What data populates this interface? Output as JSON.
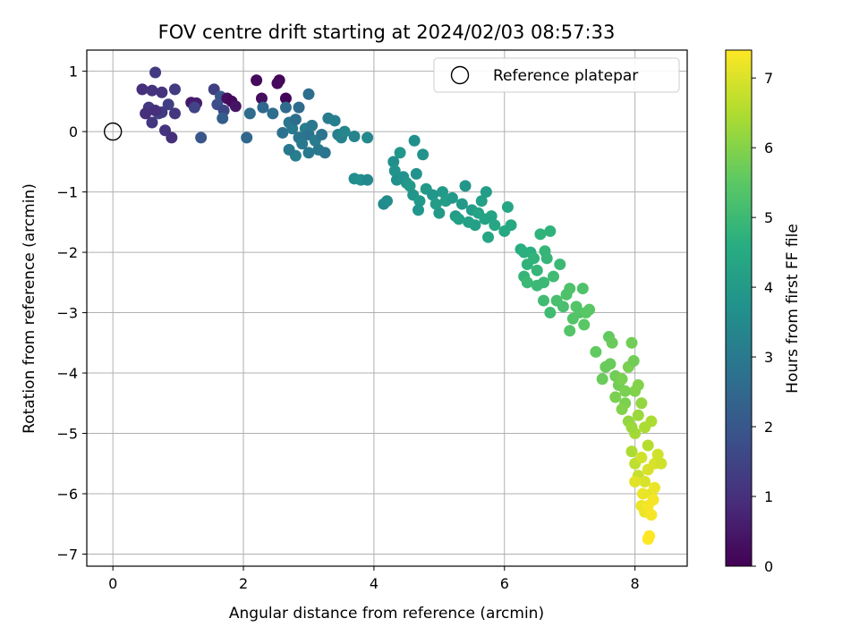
{
  "chart_data": {
    "type": "scatter",
    "title": "FOV centre drift starting at 2024/02/03 08:57:33",
    "xlabel": "Angular distance from reference (arcmin)",
    "ylabel": "Rotation from reference (arcmin)",
    "xlim": [
      -0.4,
      8.8
    ],
    "ylim": [
      -7.2,
      1.35
    ],
    "xticks": [
      0,
      2,
      4,
      6,
      8
    ],
    "yticks": [
      1,
      0,
      -1,
      -2,
      -3,
      -4,
      -5,
      -6,
      -7
    ],
    "grid": true,
    "legend": {
      "placement": "top-right",
      "entries": [
        "Reference platepar"
      ]
    },
    "reference_point": {
      "name": "Reference platepar",
      "x": 0,
      "y": 0,
      "marker": "hollow-circle"
    },
    "colorbar": {
      "label": "Hours from first FF file",
      "colormap": "viridis",
      "range": [
        0,
        7.4
      ],
      "ticks": [
        0,
        1,
        2,
        3,
        4,
        5,
        6,
        7
      ]
    },
    "points": [
      [
        0.45,
        0.7,
        1.0
      ],
      [
        0.55,
        0.4,
        1.2
      ],
      [
        0.65,
        0.98,
        1.3
      ],
      [
        0.75,
        0.65,
        1.1
      ],
      [
        0.85,
        0.45,
        1.4
      ],
      [
        0.95,
        0.7,
        1.3
      ],
      [
        0.5,
        0.3,
        1.0
      ],
      [
        0.6,
        0.15,
        1.2
      ],
      [
        0.7,
        0.3,
        1.5
      ],
      [
        0.8,
        0.02,
        1.1
      ],
      [
        0.9,
        -0.1,
        1.0
      ],
      [
        0.95,
        0.3,
        1.2
      ],
      [
        0.6,
        0.68,
        1.1
      ],
      [
        0.75,
        0.32,
        1.3
      ],
      [
        0.65,
        0.35,
        1.0
      ],
      [
        1.2,
        0.48,
        0.5
      ],
      [
        1.28,
        0.47,
        0.6
      ],
      [
        1.55,
        0.7,
        1.4
      ],
      [
        1.6,
        0.45,
        1.8
      ],
      [
        1.65,
        0.58,
        2.0
      ],
      [
        1.75,
        0.55,
        0.3
      ],
      [
        1.82,
        0.5,
        0.2
      ],
      [
        1.88,
        0.42,
        0.4
      ],
      [
        1.7,
        0.35,
        1.6
      ],
      [
        1.68,
        0.22,
        2.2
      ],
      [
        1.25,
        0.4,
        1.5
      ],
      [
        1.35,
        -0.1,
        2.0
      ],
      [
        2.05,
        -0.1,
        2.5
      ],
      [
        2.1,
        0.3,
        2.6
      ],
      [
        2.2,
        0.85,
        0.2
      ],
      [
        2.28,
        0.55,
        0.3
      ],
      [
        2.3,
        0.4,
        2.5
      ],
      [
        2.45,
        0.3,
        2.7
      ],
      [
        2.55,
        0.85,
        0.1
      ],
      [
        2.52,
        0.8,
        0.2
      ],
      [
        2.65,
        0.55,
        0.1
      ],
      [
        2.65,
        0.4,
        2.6
      ],
      [
        2.6,
        -0.02,
        2.8
      ],
      [
        2.7,
        0.15,
        2.9
      ],
      [
        2.75,
        0.05,
        3.0
      ],
      [
        2.8,
        0.2,
        2.7
      ],
      [
        2.85,
        -0.1,
        2.9
      ],
      [
        2.9,
        -0.2,
        3.0
      ],
      [
        2.95,
        0.05,
        3.1
      ],
      [
        3.0,
        -0.05,
        2.8
      ],
      [
        3.05,
        0.1,
        3.0
      ],
      [
        3.1,
        -0.15,
        3.1
      ],
      [
        3.15,
        -0.3,
        3.0
      ],
      [
        3.2,
        -0.05,
        2.9
      ],
      [
        2.8,
        -0.4,
        3.2
      ],
      [
        2.85,
        0.4,
        2.6
      ],
      [
        3.0,
        0.62,
        2.7
      ],
      [
        2.7,
        -0.3,
        3.0
      ],
      [
        3.25,
        -0.35,
        2.9
      ],
      [
        3.3,
        0.22,
        3.1
      ],
      [
        3.4,
        0.18,
        3.2
      ],
      [
        3.45,
        -0.05,
        3.2
      ],
      [
        3.5,
        -0.1,
        3.3
      ],
      [
        3.55,
        0.0,
        3.4
      ],
      [
        3.7,
        -0.08,
        3.3
      ],
      [
        3.0,
        -0.35,
        3.0
      ],
      [
        3.7,
        -0.78,
        3.6
      ],
      [
        3.8,
        -0.8,
        3.7
      ],
      [
        3.9,
        -0.8,
        3.5
      ],
      [
        3.9,
        -0.1,
        3.5
      ],
      [
        4.15,
        -1.2,
        3.5
      ],
      [
        4.2,
        -1.15,
        3.6
      ],
      [
        4.3,
        -0.5,
        3.7
      ],
      [
        4.32,
        -0.65,
        3.8
      ],
      [
        4.35,
        -0.8,
        3.7
      ],
      [
        4.4,
        -0.35,
        3.9
      ],
      [
        4.45,
        -0.75,
        3.8
      ],
      [
        4.5,
        -0.85,
        3.9
      ],
      [
        4.55,
        -0.9,
        4.0
      ],
      [
        4.6,
        -1.05,
        3.9
      ],
      [
        4.65,
        -0.7,
        3.8
      ],
      [
        4.62,
        -0.15,
        3.7
      ],
      [
        4.7,
        -1.15,
        4.0
      ],
      [
        4.68,
        -1.3,
        3.9
      ],
      [
        4.75,
        -0.38,
        3.8
      ],
      [
        4.8,
        -0.95,
        4.0
      ],
      [
        4.9,
        -1.05,
        3.9
      ],
      [
        4.95,
        -1.2,
        4.1
      ],
      [
        5.0,
        -1.35,
        4.0
      ],
      [
        5.05,
        -1.0,
        4.0
      ],
      [
        5.1,
        -1.15,
        4.1
      ],
      [
        5.2,
        -1.1,
        4.0
      ],
      [
        5.25,
        -1.4,
        4.1
      ],
      [
        5.3,
        -1.45,
        4.2
      ],
      [
        5.35,
        -1.2,
        4.0
      ],
      [
        5.4,
        -0.9,
        3.9
      ],
      [
        5.45,
        -1.5,
        4.2
      ],
      [
        5.5,
        -1.3,
        4.1
      ],
      [
        5.55,
        -1.55,
        4.2
      ],
      [
        5.6,
        -1.35,
        4.3
      ],
      [
        5.65,
        -1.15,
        4.2
      ],
      [
        5.7,
        -1.45,
        4.3
      ],
      [
        5.75,
        -1.75,
        4.4
      ],
      [
        5.8,
        -1.4,
        4.3
      ],
      [
        5.72,
        -1.0,
        4.1
      ],
      [
        5.85,
        -1.55,
        4.4
      ],
      [
        6.0,
        -1.65,
        4.5
      ],
      [
        6.05,
        -1.25,
        4.4
      ],
      [
        6.1,
        -1.55,
        4.5
      ],
      [
        6.25,
        -1.95,
        4.6
      ],
      [
        6.3,
        -2.0,
        4.7
      ],
      [
        6.35,
        -2.2,
        4.8
      ],
      [
        6.4,
        -2.0,
        4.7
      ],
      [
        6.45,
        -2.1,
        4.8
      ],
      [
        6.5,
        -2.3,
        4.9
      ],
      [
        6.55,
        -1.7,
        4.8
      ],
      [
        6.6,
        -2.5,
        5.0
      ],
      [
        6.62,
        -1.98,
        4.9
      ],
      [
        6.65,
        -2.1,
        4.9
      ],
      [
        6.7,
        -1.65,
        4.8
      ],
      [
        6.3,
        -2.4,
        4.9
      ],
      [
        6.35,
        -2.5,
        5.0
      ],
      [
        6.5,
        -2.55,
        5.0
      ],
      [
        6.6,
        -2.8,
        5.1
      ],
      [
        6.7,
        -3.0,
        5.1
      ],
      [
        6.75,
        -2.4,
        5.1
      ],
      [
        6.8,
        -2.8,
        5.2
      ],
      [
        6.85,
        -2.2,
        5.0
      ],
      [
        6.9,
        -2.9,
        5.2
      ],
      [
        6.95,
        -2.7,
        5.3
      ],
      [
        7.0,
        -2.6,
        5.3
      ],
      [
        7.05,
        -3.1,
        5.4
      ],
      [
        7.1,
        -2.9,
        5.4
      ],
      [
        7.15,
        -3.0,
        5.4
      ],
      [
        7.2,
        -2.6,
        5.3
      ],
      [
        7.22,
        -3.2,
        5.5
      ],
      [
        7.25,
        -3.0,
        5.5
      ],
      [
        7.3,
        -2.95,
        5.5
      ],
      [
        7.0,
        -3.3,
        5.4
      ],
      [
        7.4,
        -3.65,
        5.6
      ],
      [
        7.5,
        -4.1,
        5.7
      ],
      [
        7.55,
        -3.9,
        5.7
      ],
      [
        7.6,
        -3.4,
        5.6
      ],
      [
        7.62,
        -3.85,
        5.7
      ],
      [
        7.65,
        -3.5,
        5.7
      ],
      [
        7.7,
        -4.05,
        5.8
      ],
      [
        7.75,
        -4.2,
        5.8
      ],
      [
        7.8,
        -4.1,
        5.9
      ],
      [
        7.85,
        -4.5,
        5.9
      ],
      [
        7.9,
        -3.9,
        5.9
      ],
      [
        7.95,
        -3.5,
        5.8
      ],
      [
        7.98,
        -3.8,
        5.8
      ],
      [
        8.0,
        -4.3,
        6.0
      ],
      [
        7.7,
        -4.4,
        5.9
      ],
      [
        7.8,
        -4.6,
        6.0
      ],
      [
        7.9,
        -4.8,
        6.2
      ],
      [
        8.0,
        -5.0,
        6.4
      ],
      [
        8.05,
        -4.7,
        6.3
      ],
      [
        8.1,
        -4.5,
        6.2
      ],
      [
        8.15,
        -4.9,
        6.5
      ],
      [
        8.2,
        -5.2,
        6.6
      ],
      [
        8.25,
        -4.8,
        6.5
      ],
      [
        7.95,
        -5.3,
        6.5
      ],
      [
        8.0,
        -5.5,
        6.7
      ],
      [
        8.05,
        -5.7,
        6.8
      ],
      [
        8.1,
        -5.4,
        6.9
      ],
      [
        8.15,
        -5.8,
        7.0
      ],
      [
        8.2,
        -5.6,
        7.0
      ],
      [
        8.25,
        -6.0,
        7.1
      ],
      [
        8.3,
        -5.5,
        7.0
      ],
      [
        8.35,
        -5.35,
        6.9
      ],
      [
        8.4,
        -5.5,
        6.9
      ],
      [
        8.1,
        -6.2,
        7.2
      ],
      [
        8.15,
        -6.3,
        7.2
      ],
      [
        8.2,
        -6.2,
        7.3
      ],
      [
        8.25,
        -6.35,
        7.3
      ],
      [
        8.28,
        -6.1,
        7.3
      ],
      [
        8.22,
        -6.7,
        7.4
      ],
      [
        8.2,
        -6.75,
        7.4
      ],
      [
        8.12,
        -6.0,
        7.2
      ],
      [
        8.0,
        -5.8,
        7.1
      ],
      [
        8.3,
        -5.9,
        7.2
      ],
      [
        7.95,
        -4.9,
        6.3
      ],
      [
        8.05,
        -4.2,
        6.0
      ],
      [
        7.85,
        -4.3,
        5.9
      ]
    ]
  }
}
